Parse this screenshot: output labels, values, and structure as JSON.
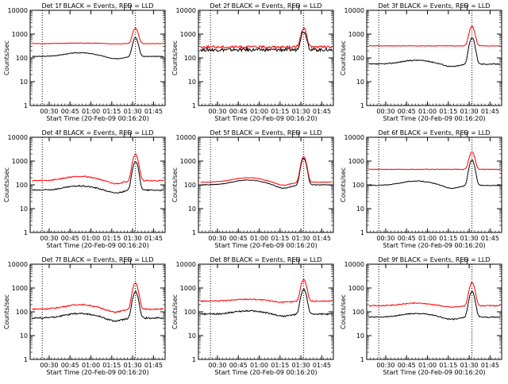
{
  "chart_data": [
    {
      "type": "line",
      "title": "Det 1f BLACK = Events, RED = LLD",
      "xlabel": "Start Time (20-Feb-09 00:16:20)",
      "ylabel": "Counts/sec",
      "yscale": "log",
      "ylim": [
        1,
        10000
      ],
      "yticks": [
        1,
        10,
        100,
        1000,
        10000
      ],
      "xticks": [
        "00:30",
        "00:45",
        "01:00",
        "01:15",
        "01:30",
        "01:45"
      ],
      "xlim_minutes": [
        0,
        97
      ],
      "dotted_markers": [
        "00:25",
        "01:32"
      ],
      "series": [
        {
          "name": "Events",
          "color": "#000000",
          "baseline": 115,
          "hump": 50,
          "peak": 600,
          "noise": 0.03
        },
        {
          "name": "LLD",
          "color": "#ff0000",
          "baseline": 400,
          "hump": 20,
          "peak": 1400,
          "noise": 0.03
        }
      ]
    },
    {
      "type": "line",
      "title": "Det 2f BLACK = Events, RED = LLD",
      "xlabel": "Start Time (20-Feb-09 00:16:20)",
      "ylabel": "Counts/sec",
      "yscale": "log",
      "ylim": [
        1,
        10000
      ],
      "yticks": [
        1,
        10,
        100,
        1000,
        10000
      ],
      "xticks": [
        "00:30",
        "00:45",
        "01:00",
        "01:15",
        "01:30",
        "01:45"
      ],
      "xlim_minutes": [
        0,
        97
      ],
      "dotted_markers": [
        "00:25",
        "01:32"
      ],
      "series": [
        {
          "name": "Events",
          "color": "#000000",
          "baseline": 220,
          "hump": 0,
          "peak": 1100,
          "noise": 0.15
        },
        {
          "name": "LLD",
          "color": "#ff0000",
          "baseline": 290,
          "hump": 0,
          "peak": 1400,
          "noise": 0.12
        }
      ]
    },
    {
      "type": "line",
      "title": "Det 3f BLACK = Events, RED = LLD",
      "xlabel": "Start Time (20-Feb-09 00:16:20)",
      "ylabel": "Counts/sec",
      "yscale": "log",
      "ylim": [
        1,
        10000
      ],
      "yticks": [
        1,
        10,
        100,
        1000,
        10000
      ],
      "xticks": [
        "00:30",
        "00:45",
        "01:00",
        "01:15",
        "01:30",
        "01:45"
      ],
      "xlim_minutes": [
        0,
        97
      ],
      "dotted_markers": [
        "00:25",
        "01:32"
      ],
      "series": [
        {
          "name": "Events",
          "color": "#000000",
          "baseline": 55,
          "hump": 25,
          "peak": 650,
          "noise": 0.05
        },
        {
          "name": "LLD",
          "color": "#ff0000",
          "baseline": 320,
          "hump": 0,
          "peak": 1800,
          "noise": 0.03
        }
      ]
    },
    {
      "type": "line",
      "title": "Det 4f BLACK = Events, RED = LLD",
      "xlabel": "Start Time (20-Feb-09 00:16:20)",
      "ylabel": "Counts/sec",
      "yscale": "log",
      "ylim": [
        1,
        10000
      ],
      "yticks": [
        1,
        10,
        100,
        1000,
        10000
      ],
      "xticks": [
        "00:30",
        "00:45",
        "01:00",
        "01:15",
        "01:30",
        "01:45"
      ],
      "xlim_minutes": [
        0,
        97
      ],
      "dotted_markers": [
        "00:25",
        "01:32"
      ],
      "series": [
        {
          "name": "Events",
          "color": "#000000",
          "baseline": 60,
          "hump": 30,
          "peak": 900,
          "noise": 0.06
        },
        {
          "name": "LLD",
          "color": "#ff0000",
          "baseline": 150,
          "hump": 80,
          "peak": 1800,
          "noise": 0.06
        }
      ]
    },
    {
      "type": "line",
      "title": "Det 5f BLACK = Events, RED = LLD",
      "xlabel": "Start Time (20-Feb-09 00:16:20)",
      "ylabel": "Counts/sec",
      "yscale": "log",
      "ylim": [
        1,
        10000
      ],
      "yticks": [
        1,
        10,
        100,
        1000,
        10000
      ],
      "xticks": [
        "00:30",
        "00:45",
        "01:00",
        "01:15",
        "01:30",
        "01:45"
      ],
      "xlim_minutes": [
        0,
        97
      ],
      "dotted_markers": [
        "00:25",
        "01:32"
      ],
      "series": [
        {
          "name": "Events",
          "color": "#000000",
          "baseline": 100,
          "hump": 60,
          "peak": 1200,
          "noise": 0.03
        },
        {
          "name": "LLD",
          "color": "#ff0000",
          "baseline": 130,
          "hump": 70,
          "peak": 1400,
          "noise": 0.03
        }
      ]
    },
    {
      "type": "line",
      "title": "Det 6f BLACK = Events, RED = LLD",
      "xlabel": "Start Time (20-Feb-09 00:16:20)",
      "ylabel": "Counts/sec",
      "yscale": "log",
      "ylim": [
        1,
        10000
      ],
      "yticks": [
        1,
        10,
        100,
        1000,
        10000
      ],
      "xticks": [
        "00:30",
        "00:45",
        "01:00",
        "01:15",
        "01:30",
        "01:45"
      ],
      "xlim_minutes": [
        0,
        97
      ],
      "dotted_markers": [
        "00:25",
        "01:32"
      ],
      "series": [
        {
          "name": "Events",
          "color": "#000000",
          "baseline": 95,
          "hump": 50,
          "peak": 1000,
          "noise": 0.03
        },
        {
          "name": "LLD",
          "color": "#ff0000",
          "baseline": 450,
          "hump": 0,
          "peak": 2000,
          "noise": 0.03
        }
      ]
    },
    {
      "type": "line",
      "title": "Det 7f BLACK = Events, RED = LLD",
      "xlabel": "Start Time (20-Feb-09 00:16:20)",
      "ylabel": "Counts/sec",
      "yscale": "log",
      "ylim": [
        1,
        10000
      ],
      "yticks": [
        1,
        10,
        100,
        1000,
        10000
      ],
      "xticks": [
        "00:30",
        "00:45",
        "01:00",
        "01:15",
        "01:30",
        "01:45"
      ],
      "xlim_minutes": [
        0,
        97
      ],
      "dotted_markers": [
        "00:25",
        "01:32"
      ],
      "series": [
        {
          "name": "Events",
          "color": "#000000",
          "baseline": 55,
          "hump": 30,
          "peak": 650,
          "noise": 0.07
        },
        {
          "name": "LLD",
          "color": "#ff0000",
          "baseline": 130,
          "hump": 70,
          "peak": 1500,
          "noise": 0.06
        }
      ]
    },
    {
      "type": "line",
      "title": "Det 8f BLACK = Events, RED = LLD",
      "xlabel": "Start Time (20-Feb-09 00:16:20)",
      "ylabel": "Counts/sec",
      "yscale": "log",
      "ylim": [
        1,
        10000
      ],
      "yticks": [
        1,
        10,
        100,
        1000,
        10000
      ],
      "xticks": [
        "00:30",
        "00:45",
        "01:00",
        "01:15",
        "01:30",
        "01:45"
      ],
      "xlim_minutes": [
        0,
        97
      ],
      "dotted_markers": [
        "00:25",
        "01:32"
      ],
      "series": [
        {
          "name": "Events",
          "color": "#000000",
          "baseline": 80,
          "hump": 30,
          "peak": 800,
          "noise": 0.07
        },
        {
          "name": "LLD",
          "color": "#ff0000",
          "baseline": 280,
          "hump": 60,
          "peak": 2000,
          "noise": 0.06
        }
      ]
    },
    {
      "type": "line",
      "title": "Det 9f BLACK = Events, RED = LLD",
      "xlabel": "Start Time (20-Feb-09 00:16:20)",
      "ylabel": "Counts/sec",
      "yscale": "log",
      "ylim": [
        1,
        10000
      ],
      "yticks": [
        1,
        10,
        100,
        1000,
        10000
      ],
      "xticks": [
        "00:30",
        "00:45",
        "01:00",
        "01:15",
        "01:30",
        "01:45"
      ],
      "xlim_minutes": [
        0,
        97
      ],
      "dotted_markers": [
        "00:25",
        "01:32"
      ],
      "series": [
        {
          "name": "Events",
          "color": "#000000",
          "baseline": 60,
          "hump": 25,
          "peak": 650,
          "noise": 0.05
        },
        {
          "name": "LLD",
          "color": "#ff0000",
          "baseline": 180,
          "hump": 50,
          "peak": 1500,
          "noise": 0.05
        }
      ]
    }
  ]
}
